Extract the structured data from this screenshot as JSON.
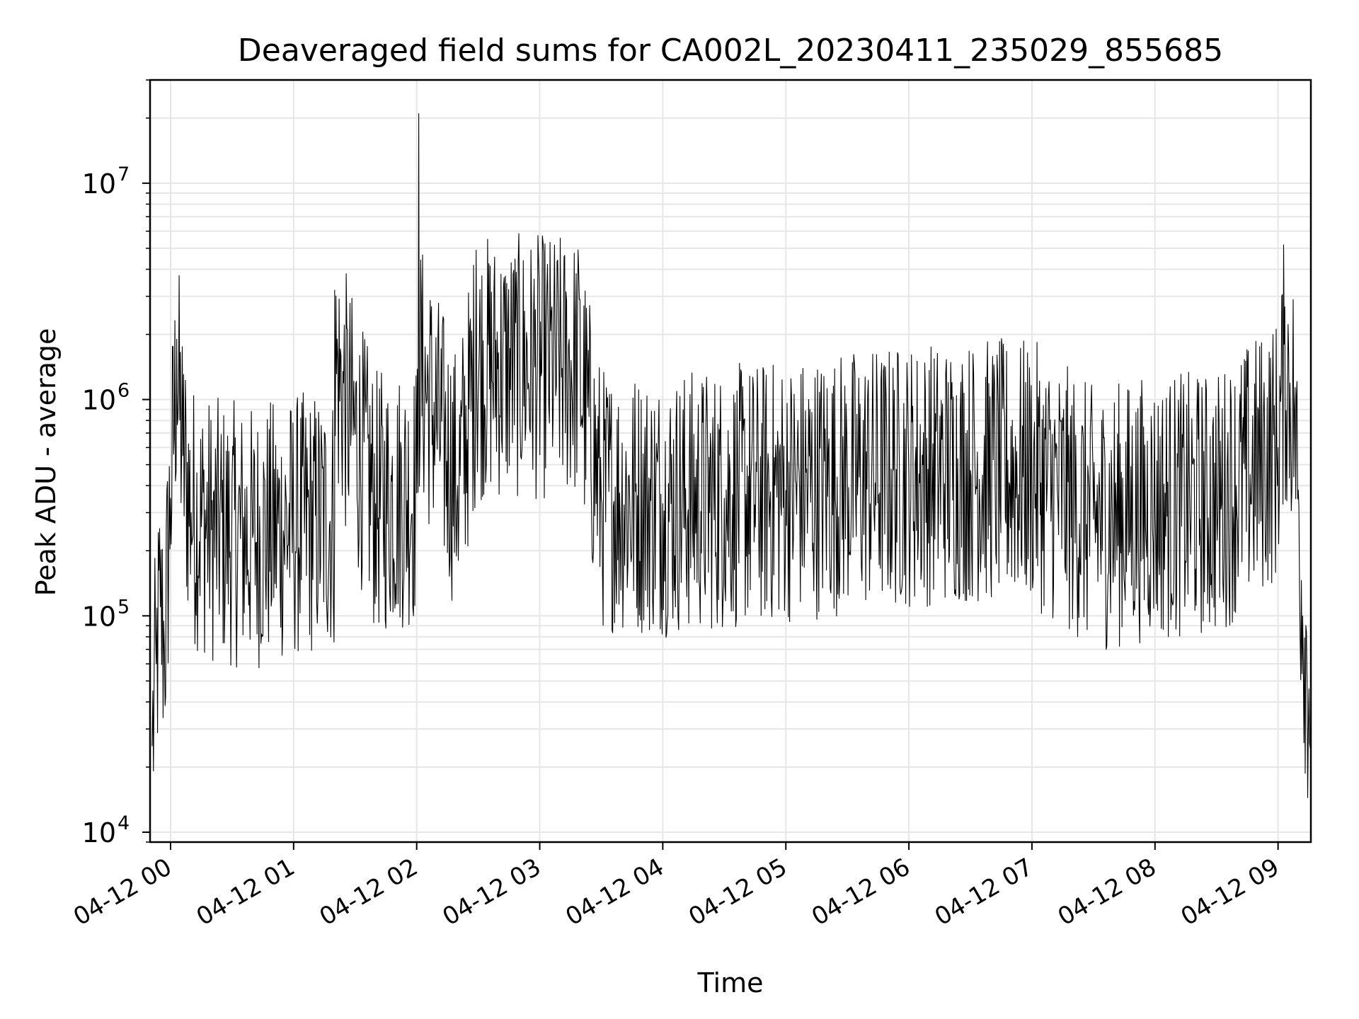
{
  "chart_data": {
    "type": "line",
    "title": "Deaveraged field sums for CA002L_20230411_235029_855685",
    "xlabel": "Time",
    "ylabel": "Peak ADU - average",
    "yscale": "log",
    "ylim": [
      9000,
      30000000
    ],
    "xlim": [
      "2023-04-11 23:50",
      "2023-04-12 09:16"
    ],
    "grid": true,
    "legend": "none",
    "line_color": "#000000",
    "grid_color": "#e6e6e6",
    "x_ticks": [
      {
        "t": "2023-04-12 00:00",
        "label": "04-12 00"
      },
      {
        "t": "2023-04-12 01:00",
        "label": "04-12 01"
      },
      {
        "t": "2023-04-12 02:00",
        "label": "04-12 02"
      },
      {
        "t": "2023-04-12 03:00",
        "label": "04-12 03"
      },
      {
        "t": "2023-04-12 04:00",
        "label": "04-12 04"
      },
      {
        "t": "2023-04-12 05:00",
        "label": "04-12 05"
      },
      {
        "t": "2023-04-12 06:00",
        "label": "04-12 06"
      },
      {
        "t": "2023-04-12 07:00",
        "label": "04-12 07"
      },
      {
        "t": "2023-04-12 08:00",
        "label": "04-12 08"
      },
      {
        "t": "2023-04-12 09:00",
        "label": "04-12 09"
      }
    ],
    "y_ticks": [
      {
        "value": 10000,
        "base": "10",
        "exp": "4"
      },
      {
        "value": 100000,
        "base": "10",
        "exp": "5"
      },
      {
        "value": 1000000,
        "base": "10",
        "exp": "6"
      },
      {
        "value": 10000000,
        "base": "10",
        "exp": "7"
      }
    ],
    "series": [
      {
        "points": [
          [
            "2023-04-11 23:51",
            25000
          ],
          [
            "2023-04-11 23:53",
            60000
          ],
          [
            "2023-04-11 23:55",
            110000
          ],
          [
            "2023-04-11 23:57",
            70000
          ],
          [
            "2023-04-12 00:00",
            350000
          ],
          [
            "2023-04-12 00:03",
            1900000
          ],
          [
            "2023-04-12 00:06",
            550000
          ],
          [
            "2023-04-12 00:10",
            300000
          ],
          [
            "2023-04-12 00:20",
            250000
          ],
          [
            "2023-04-12 00:40",
            230000
          ],
          [
            "2023-04-12 01:00",
            260000
          ],
          [
            "2023-04-12 01:20",
            280000
          ],
          [
            "2023-04-12 01:20",
            3200000
          ],
          [
            "2023-04-12 01:40",
            330000
          ],
          [
            "2023-04-12 02:00",
            370000
          ],
          [
            "2023-04-12 02:01",
            21000000
          ],
          [
            "2023-04-12 02:20",
            400000
          ],
          [
            "2023-04-12 02:29",
            4900000
          ],
          [
            "2023-04-12 02:47",
            3800000
          ],
          [
            "2023-04-12 03:19",
            3900000
          ],
          [
            "2023-04-12 03:30",
            350000
          ],
          [
            "2023-04-12 04:00",
            330000
          ],
          [
            "2023-04-12 04:30",
            350000
          ],
          [
            "2023-04-12 05:00",
            380000
          ],
          [
            "2023-04-12 05:30",
            420000
          ],
          [
            "2023-04-12 06:00",
            450000
          ],
          [
            "2023-04-12 06:30",
            470000
          ],
          [
            "2023-04-12 07:00",
            460000
          ],
          [
            "2023-04-12 07:30",
            280000
          ],
          [
            "2023-04-12 08:00",
            320000
          ],
          [
            "2023-04-12 08:30",
            330000
          ],
          [
            "2023-04-12 09:00",
            600000
          ],
          [
            "2023-04-12 09:03",
            1800000
          ],
          [
            "2023-04-12 09:08",
            900000
          ],
          [
            "2023-04-12 09:12",
            100000
          ],
          [
            "2023-04-12 09:16",
            40000
          ]
        ]
      }
    ]
  }
}
